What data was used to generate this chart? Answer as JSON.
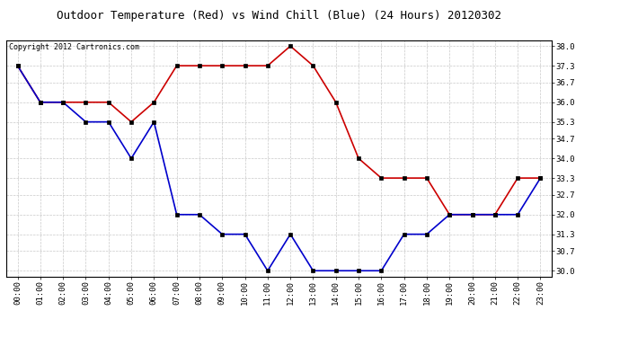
{
  "title": "Outdoor Temperature (Red) vs Wind Chill (Blue) (24 Hours) 20120302",
  "copyright_text": "Copyright 2012 Cartronics.com",
  "x_labels": [
    "00:00",
    "01:00",
    "02:00",
    "03:00",
    "04:00",
    "05:00",
    "06:00",
    "07:00",
    "08:00",
    "09:00",
    "10:00",
    "11:00",
    "12:00",
    "13:00",
    "14:00",
    "15:00",
    "16:00",
    "17:00",
    "18:00",
    "19:00",
    "20:00",
    "21:00",
    "22:00",
    "23:00"
  ],
  "red_temps": [
    37.3,
    36.0,
    36.0,
    36.0,
    36.0,
    35.3,
    36.0,
    37.3,
    37.3,
    37.3,
    37.3,
    37.3,
    38.0,
    37.3,
    36.0,
    34.0,
    33.3,
    33.3,
    33.3,
    32.0,
    32.0,
    32.0,
    33.3,
    33.3
  ],
  "blue_windchill": [
    37.3,
    36.0,
    36.0,
    35.3,
    35.3,
    34.0,
    35.3,
    32.0,
    32.0,
    31.3,
    31.3,
    30.0,
    31.3,
    30.0,
    30.0,
    30.0,
    30.0,
    31.3,
    31.3,
    32.0,
    32.0,
    32.0,
    32.0,
    33.3
  ],
  "y_ticks": [
    30.0,
    30.7,
    31.3,
    32.0,
    32.7,
    33.3,
    34.0,
    34.7,
    35.3,
    36.0,
    36.7,
    37.3,
    38.0
  ],
  "ylim": [
    29.8,
    38.2
  ],
  "red_color": "#cc0000",
  "blue_color": "#0000cc",
  "bg_color": "#ffffff",
  "grid_color": "#bbbbbb",
  "title_fontsize": 9,
  "copyright_fontsize": 6,
  "tick_fontsize": 6.5
}
